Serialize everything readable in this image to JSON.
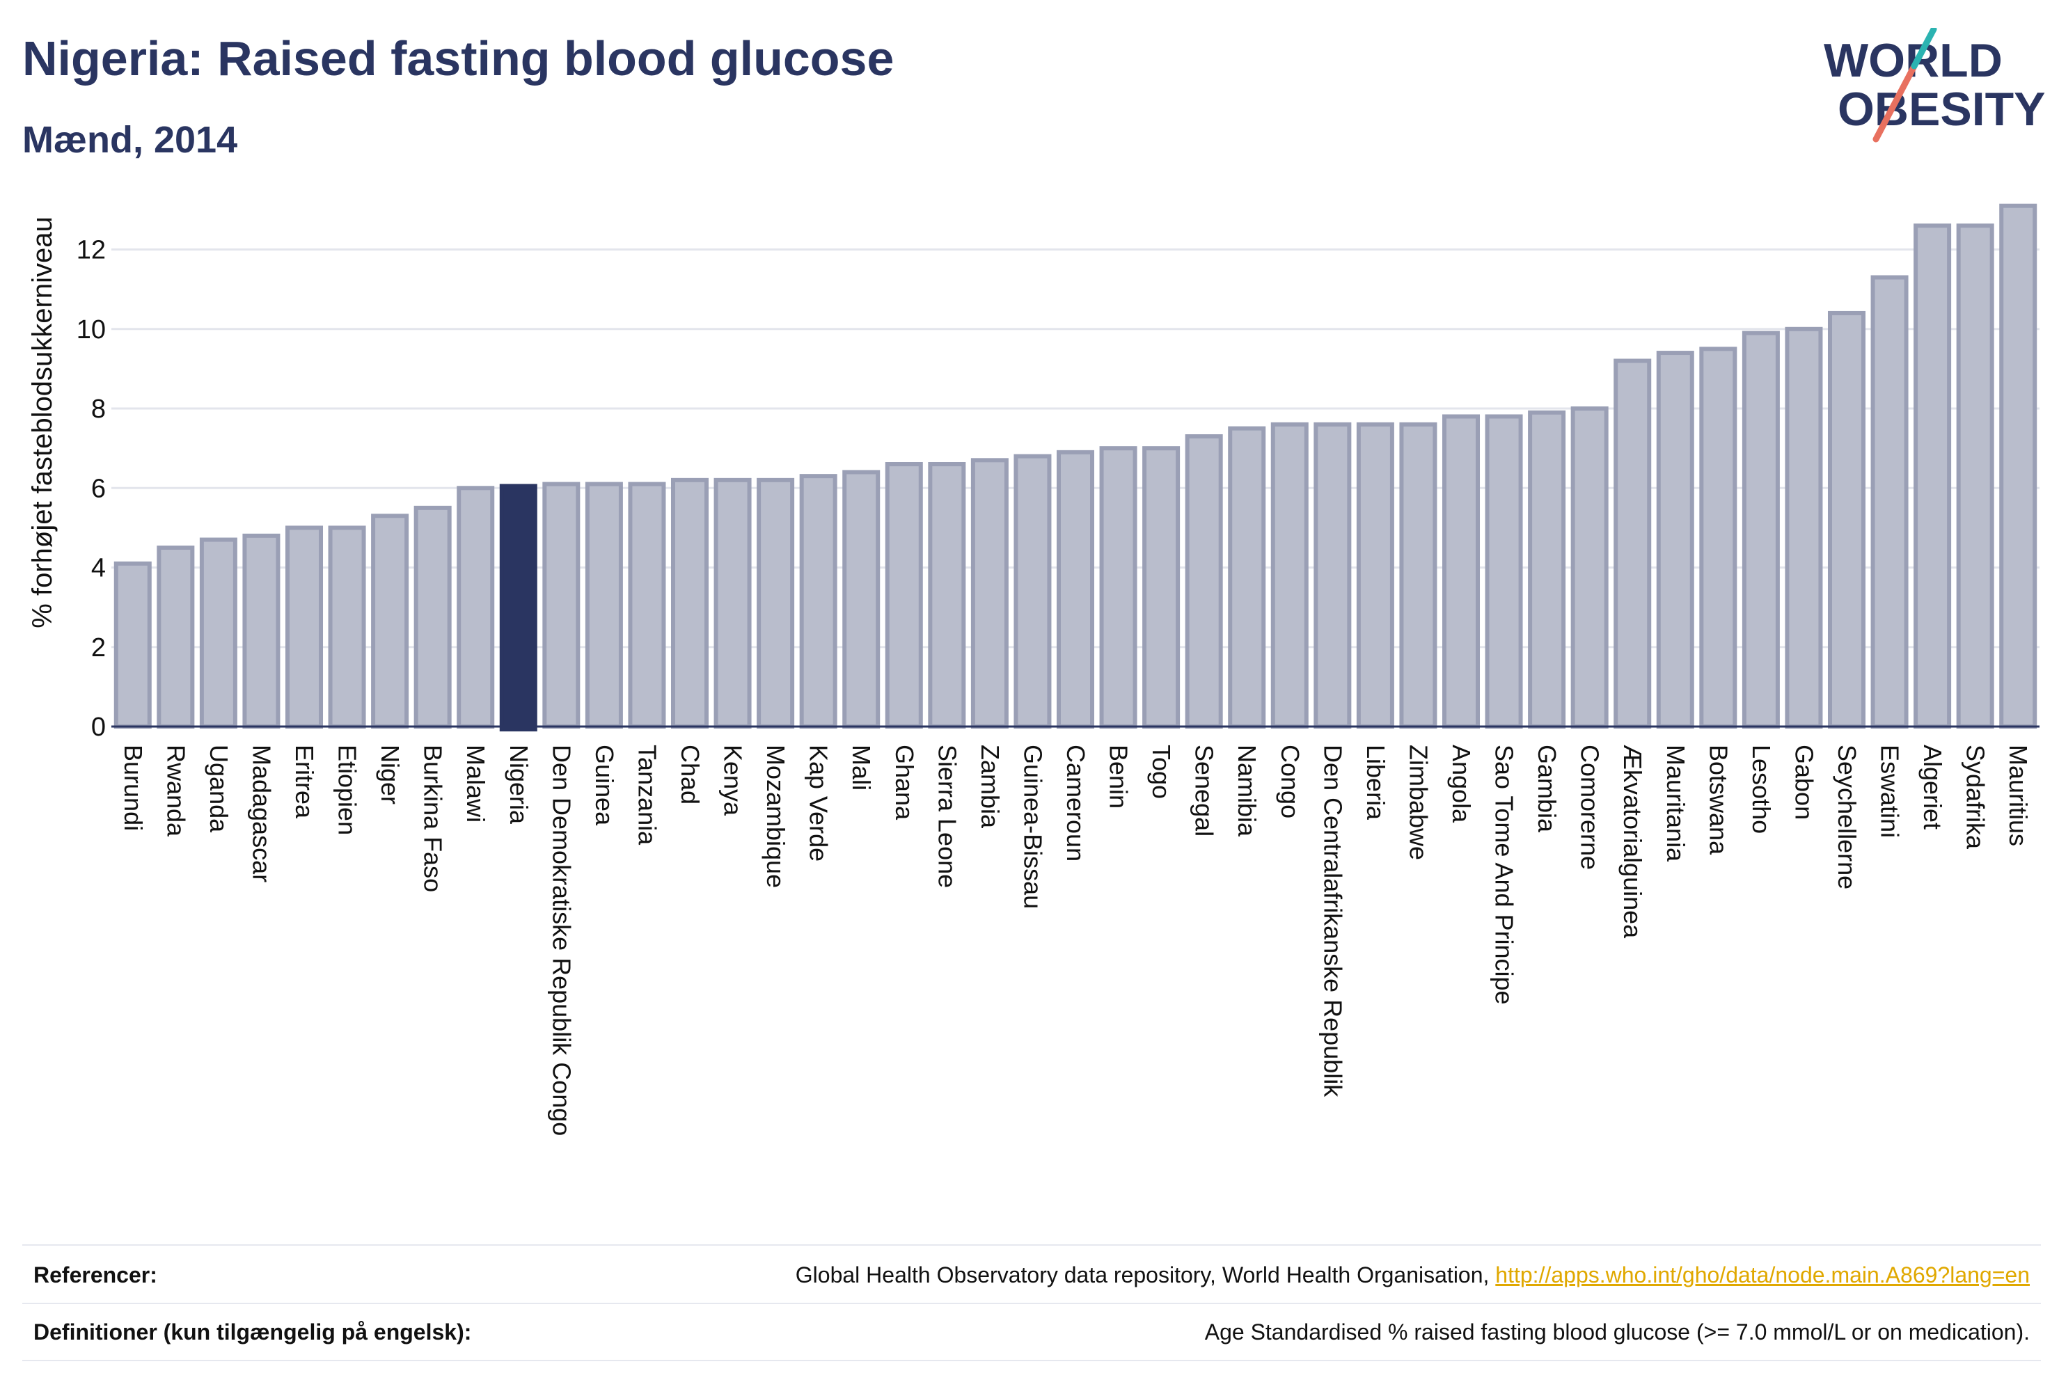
{
  "header": {
    "title": "Nigeria: Raised fasting blood glucose",
    "subtitle": "Mænd, 2014",
    "logo_line1": "WORLD",
    "logo_line2": "OBESITY"
  },
  "colors": {
    "bar": "#b9bdcc",
    "bar_border": "#9a9fb5",
    "highlight": "#2a3561",
    "grid": "#e3e5ec",
    "logo_teal": "#2bb3b1",
    "logo_coral": "#e8705f"
  },
  "chart_data": {
    "type": "bar",
    "ylabel": "% forhøjet fasteblodsukkerniveau",
    "ylim": [
      0,
      13.2
    ],
    "yticks": [
      0,
      2,
      4,
      6,
      8,
      10,
      12
    ],
    "grid": true,
    "highlight": "Nigeria",
    "categories": [
      "Burundi",
      "Rwanda",
      "Uganda",
      "Madagascar",
      "Eritrea",
      "Etiopien",
      "Niger",
      "Burkina Faso",
      "Malawi",
      "Nigeria",
      "Den Demokratiske Republik Congo",
      "Guinea",
      "Tanzania",
      "Chad",
      "Kenya",
      "Mozambique",
      "Kap Verde",
      "Mali",
      "Ghana",
      "Sierra Leone",
      "Zambia",
      "Guinea-Bissau",
      "Cameroun",
      "Benin",
      "Togo",
      "Senegal",
      "Namibia",
      "Congo",
      "Den Centralafrikanske Republik",
      "Liberia",
      "Zimbabwe",
      "Angola",
      "Sao Tome And Principe",
      "Gambia",
      "Comorerne",
      "Ækvatorialguinea",
      "Mauritania",
      "Botswana",
      "Lesotho",
      "Gabon",
      "Seychellerne",
      "Eswatini",
      "Algeriet",
      "Sydafrika",
      "Mauritius"
    ],
    "values": [
      4.1,
      4.5,
      4.7,
      4.8,
      5.0,
      5.0,
      5.3,
      5.5,
      6.0,
      6.05,
      6.1,
      6.1,
      6.1,
      6.2,
      6.2,
      6.2,
      6.3,
      6.4,
      6.6,
      6.6,
      6.7,
      6.8,
      6.9,
      7.0,
      7.0,
      7.3,
      7.5,
      7.6,
      7.6,
      7.6,
      7.6,
      7.8,
      7.8,
      7.9,
      8.0,
      9.2,
      9.4,
      9.5,
      9.9,
      10.0,
      10.4,
      11.3,
      12.6,
      12.6,
      13.1
    ]
  },
  "footer": {
    "ref_label": "Referencer:",
    "ref_text": "Global Health Observatory data repository, World Health Organisation, ",
    "ref_link": "http://apps.who.int/gho/data/node.main.A869?lang=en",
    "def_label": "Definitioner (kun tilgængelig på engelsk):",
    "def_text": "Age Standardised % raised fasting blood glucose (>= 7.0 mmol/L or on medication)."
  }
}
